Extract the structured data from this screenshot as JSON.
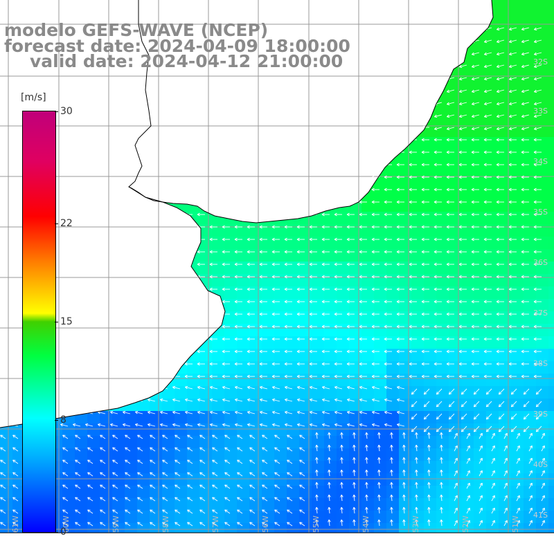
{
  "title": {
    "line1": "modelo GEFS-WAVE (NCEP)",
    "line2": "forecast date: 2024-04-09 18:00:00",
    "line3": "valid date: 2024-04-12 21:00:00"
  },
  "colorbar": {
    "unit": "[m/s]",
    "min": 0,
    "max": 30,
    "ticks": [
      "30",
      "22",
      "15",
      "8",
      "0"
    ],
    "tick_values": [
      30,
      22,
      15,
      8,
      0
    ],
    "colors": [
      "#0000ff",
      "#00b0ff",
      "#00ffff",
      "#00ff40",
      "#40d000",
      "#ffff00",
      "#ff8000",
      "#ff0000",
      "#e00060",
      "#c0007a"
    ],
    "color_stops": [
      0,
      0.18,
      0.27,
      0.42,
      0.5,
      0.52,
      0.64,
      0.75,
      0.88,
      1
    ]
  },
  "map": {
    "lon_labels": [
      "61W",
      "60W",
      "59W",
      "58W",
      "57W",
      "56W",
      "55W",
      "54W",
      "53W",
      "52W",
      "51W"
    ],
    "lat_labels": [
      "32S",
      "33S",
      "34S",
      "35S",
      "36S",
      "37S",
      "38S",
      "39S",
      "40S",
      "41S"
    ],
    "lon_range": [
      -61.3,
      -50.4
    ],
    "lat_range": [
      -41.3,
      -30.6
    ],
    "land_color": "#ffffff",
    "grid_color": "#999999",
    "coast_color": "#000000",
    "arrow_color": "#ffffff"
  }
}
